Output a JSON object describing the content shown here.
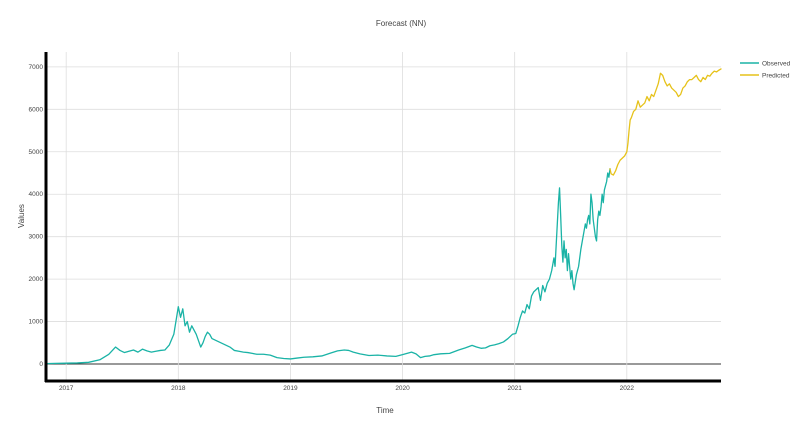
{
  "chart_data": {
    "type": "line",
    "title": "Forecast (NN)",
    "xlabel": "Time",
    "ylabel": "Values",
    "xlim": [
      2016.82,
      2022.84
    ],
    "ylim": [
      -400,
      7350
    ],
    "x_ticks": [
      {
        "value": 2017.0,
        "label": "2017"
      },
      {
        "value": 2018.0,
        "label": "2018"
      },
      {
        "value": 2019.0,
        "label": "2019"
      },
      {
        "value": 2020.0,
        "label": "2020"
      },
      {
        "value": 2021.0,
        "label": "2021"
      },
      {
        "value": 2022.0,
        "label": "2022"
      }
    ],
    "y_ticks": [
      0,
      1000,
      2000,
      3000,
      4000,
      5000,
      6000,
      7000
    ],
    "grid": true,
    "legend_position": "top-right",
    "colors": {
      "observed": "#1ab3a6",
      "predicted": "#e6c21a"
    },
    "series": [
      {
        "name": "Observed",
        "x": [
          2016.82,
          2016.9,
          2017.0,
          2017.1,
          2017.2,
          2017.3,
          2017.38,
          2017.44,
          2017.48,
          2017.52,
          2017.56,
          2017.6,
          2017.64,
          2017.68,
          2017.72,
          2017.76,
          2017.8,
          2017.84,
          2017.88,
          2017.92,
          2017.96,
          2018.0,
          2018.02,
          2018.04,
          2018.06,
          2018.08,
          2018.1,
          2018.12,
          2018.14,
          2018.16,
          2018.18,
          2018.2,
          2018.22,
          2018.24,
          2018.26,
          2018.28,
          2018.3,
          2018.34,
          2018.38,
          2018.42,
          2018.46,
          2018.5,
          2018.54,
          2018.58,
          2018.62,
          2018.66,
          2018.7,
          2018.76,
          2018.82,
          2018.88,
          2018.94,
          2019.0,
          2019.06,
          2019.12,
          2019.2,
          2019.28,
          2019.36,
          2019.42,
          2019.48,
          2019.52,
          2019.56,
          2019.62,
          2019.7,
          2019.78,
          2019.86,
          2019.94,
          2020.0,
          2020.08,
          2020.12,
          2020.16,
          2020.2,
          2020.24,
          2020.28,
          2020.34,
          2020.42,
          2020.5,
          2020.56,
          2020.62,
          2020.66,
          2020.7,
          2020.74,
          2020.78,
          2020.82,
          2020.86,
          2020.9,
          2020.94,
          2020.98,
          2021.01,
          2021.03,
          2021.05,
          2021.07,
          2021.09,
          2021.11,
          2021.13,
          2021.15,
          2021.17,
          2021.19,
          2021.21,
          2021.23,
          2021.25,
          2021.27,
          2021.29,
          2021.31,
          2021.33,
          2021.35,
          2021.36,
          2021.37,
          2021.38,
          2021.39,
          2021.4,
          2021.41,
          2021.42,
          2021.43,
          2021.44,
          2021.45,
          2021.46,
          2021.47,
          2021.48,
          2021.49,
          2021.5,
          2021.51,
          2021.52,
          2021.53,
          2021.55,
          2021.57,
          2021.59,
          2021.61,
          2021.63,
          2021.64,
          2021.65,
          2021.66,
          2021.67,
          2021.68,
          2021.69,
          2021.7,
          2021.71,
          2021.72,
          2021.73,
          2021.74,
          2021.75,
          2021.76,
          2021.77,
          2021.78,
          2021.79,
          2021.8,
          2021.81,
          2021.82,
          2021.83,
          2021.84,
          2021.85
        ],
        "y": [
          10,
          15,
          20,
          25,
          40,
          100,
          230,
          400,
          320,
          270,
          300,
          330,
          280,
          350,
          310,
          280,
          300,
          320,
          330,
          450,
          700,
          1350,
          1100,
          1300,
          900,
          1000,
          750,
          900,
          800,
          700,
          550,
          400,
          500,
          650,
          750,
          700,
          600,
          550,
          500,
          450,
          400,
          320,
          300,
          280,
          270,
          250,
          230,
          230,
          210,
          150,
          130,
          120,
          140,
          160,
          170,
          190,
          260,
          310,
          330,
          320,
          280,
          240,
          200,
          210,
          190,
          180,
          220,
          280,
          240,
          150,
          180,
          190,
          220,
          240,
          250,
          330,
          380,
          440,
          400,
          370,
          380,
          430,
          450,
          480,
          520,
          600,
          700,
          720,
          900,
          1100,
          1250,
          1200,
          1400,
          1300,
          1600,
          1700,
          1750,
          1800,
          1500,
          1850,
          1700,
          1900,
          2000,
          2200,
          2500,
          2300,
          2800,
          3300,
          3800,
          4150,
          3500,
          2800,
          2400,
          2900,
          2500,
          2700,
          2200,
          2600,
          2300,
          2000,
          2200,
          1900,
          1750,
          2100,
          2300,
          2700,
          3000,
          3300,
          3200,
          3400,
          3500,
          3300,
          4000,
          3800,
          3400,
          3200,
          3000,
          2900,
          3400,
          3600,
          3500,
          3700,
          4000,
          3800,
          4100,
          4200,
          4300,
          4500,
          4400,
          4600
        ]
      },
      {
        "name": "Predicted",
        "x": [
          2021.85,
          2021.86,
          2021.88,
          2021.9,
          2021.92,
          2021.94,
          2021.96,
          2021.98,
          2022.0,
          2022.01,
          2022.02,
          2022.03,
          2022.04,
          2022.06,
          2022.08,
          2022.1,
          2022.12,
          2022.14,
          2022.16,
          2022.18,
          2022.2,
          2022.22,
          2022.24,
          2022.26,
          2022.28,
          2022.3,
          2022.32,
          2022.34,
          2022.36,
          2022.38,
          2022.4,
          2022.42,
          2022.44,
          2022.46,
          2022.48,
          2022.5,
          2022.52,
          2022.54,
          2022.56,
          2022.58,
          2022.6,
          2022.62,
          2022.64,
          2022.66,
          2022.68,
          2022.7,
          2022.72,
          2022.74,
          2022.76,
          2022.78,
          2022.8,
          2022.82,
          2022.84
        ],
        "y": [
          4600,
          4480,
          4450,
          4550,
          4700,
          4800,
          4850,
          4900,
          5000,
          5200,
          5500,
          5750,
          5800,
          5950,
          6000,
          6200,
          6050,
          6100,
          6150,
          6300,
          6200,
          6350,
          6300,
          6450,
          6600,
          6850,
          6800,
          6650,
          6550,
          6600,
          6500,
          6450,
          6400,
          6300,
          6350,
          6500,
          6550,
          6650,
          6700,
          6700,
          6750,
          6800,
          6700,
          6650,
          6750,
          6700,
          6800,
          6780,
          6850,
          6900,
          6880,
          6920,
          6950
        ]
      }
    ]
  }
}
